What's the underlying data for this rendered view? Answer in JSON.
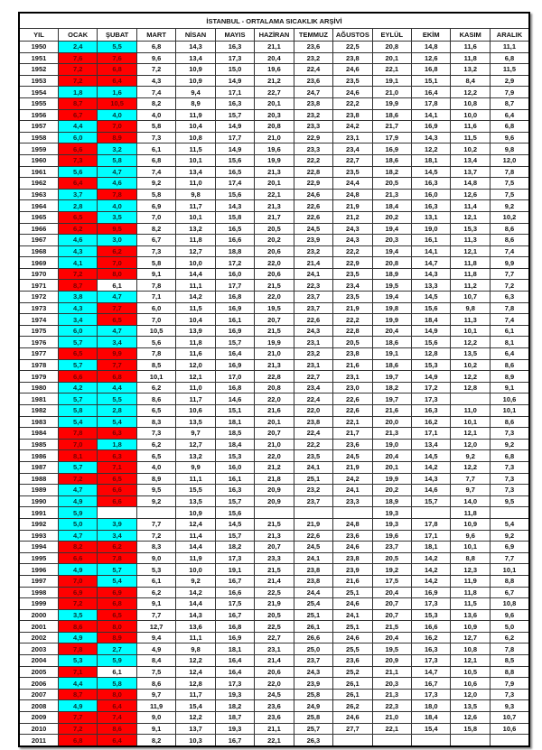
{
  "title": "İSTANBUL - ORTALAMA SICAKLIK ARŞİVİ",
  "colors": {
    "above": "#ff0000",
    "below": "#00ffff"
  },
  "headers": [
    "YIL",
    "OCAK",
    "ŞUBAT",
    "MART",
    "NİSAN",
    "MAYIS",
    "HAZİRAN",
    "TEMMUZ",
    "AĞUSTOS",
    "EYLÜL",
    "EKİM",
    "KASIM",
    "ARALIK"
  ],
  "rows": [
    {
      "cells": [
        "1950",
        "2,4",
        "5,5",
        "6,8",
        "14,3",
        "16,3",
        "21,1",
        "23,6",
        "22,5",
        "20,8",
        "14,8",
        "11,6",
        "11,1"
      ],
      "hl": "cc"
    },
    {
      "cells": [
        "1951",
        "7,6",
        "7,6",
        "9,6",
        "13,4",
        "17,3",
        "20,4",
        "23,2",
        "23,8",
        "20,1",
        "12,6",
        "11,8",
        "6,8"
      ],
      "hl": "rr"
    },
    {
      "cells": [
        "1952",
        "7,2",
        "6,8",
        "7,2",
        "10,9",
        "15,0",
        "19,6",
        "22,4",
        "24,6",
        "22,1",
        "16,8",
        "13,2",
        "11,5"
      ],
      "hl": "rr"
    },
    {
      "cells": [
        "1953",
        "7,2",
        "6,4",
        "4,3",
        "10,9",
        "14,9",
        "21,2",
        "23,6",
        "23,5",
        "19,1",
        "15,1",
        "8,4",
        "2,9"
      ],
      "hl": "rr"
    },
    {
      "cells": [
        "1954",
        "1,8",
        "1,6",
        "7,4",
        "9,4",
        "17,1",
        "22,7",
        "24,7",
        "24,6",
        "21,0",
        "16,4",
        "12,2",
        "7,9"
      ],
      "hl": "cc"
    },
    {
      "cells": [
        "1955",
        "8,7",
        "10,5",
        "8,2",
        "8,9",
        "16,3",
        "20,1",
        "23,8",
        "22,2",
        "19,9",
        "17,8",
        "10,8",
        "8,7"
      ],
      "hl": "rr"
    },
    {
      "cells": [
        "1956",
        "6,7",
        "4,0",
        "4,0",
        "11,9",
        "15,7",
        "20,3",
        "23,2",
        "23,8",
        "18,6",
        "14,1",
        "10,0",
        "6,4"
      ],
      "hl": "rc"
    },
    {
      "cells": [
        "1957",
        "4,4",
        "7,0",
        "5,8",
        "10,4",
        "14,9",
        "20,8",
        "23,3",
        "24,2",
        "21,7",
        "16,9",
        "11,6",
        "6,8"
      ],
      "hl": "cr"
    },
    {
      "cells": [
        "1958",
        "6,0",
        "8,9",
        "7,3",
        "10,8",
        "17,7",
        "21,0",
        "22,9",
        "23,1",
        "17,9",
        "14,3",
        "11,5",
        "9,6"
      ],
      "hl": "cr"
    },
    {
      "cells": [
        "1959",
        "6,6",
        "3,2",
        "6,1",
        "11,5",
        "14,9",
        "19,6",
        "23,3",
        "23,4",
        "16,9",
        "12,2",
        "10,2",
        "9,8"
      ],
      "hl": "rc"
    },
    {
      "cells": [
        "1960",
        "7,3",
        "5,8",
        "6,8",
        "10,1",
        "15,6",
        "19,9",
        "22,2",
        "22,7",
        "18,6",
        "18,1",
        "13,4",
        "12,0"
      ],
      "hl": "rc"
    },
    {
      "cells": [
        "1961",
        "5,6",
        "4,7",
        "7,4",
        "13,4",
        "16,5",
        "21,3",
        "22,8",
        "23,5",
        "18,2",
        "14,5",
        "13,7",
        "7,8"
      ],
      "hl": "cc"
    },
    {
      "cells": [
        "1962",
        "6,4",
        "4,6",
        "9,2",
        "11,0",
        "17,4",
        "20,1",
        "22,9",
        "24,4",
        "20,5",
        "16,3",
        "14,8",
        "7,5"
      ],
      "hl": "rc"
    },
    {
      "cells": [
        "1963",
        "3,7",
        "7,8",
        "5,8",
        "9,8",
        "15,6",
        "22,1",
        "24,6",
        "24,8",
        "21,3",
        "16,0",
        "12,6",
        "7,5"
      ],
      "hl": "cr"
    },
    {
      "cells": [
        "1964",
        "2,8",
        "4,0",
        "6,9",
        "11,7",
        "14,3",
        "21,3",
        "22,6",
        "21,9",
        "18,4",
        "16,3",
        "11,4",
        "9,2"
      ],
      "hl": "cc"
    },
    {
      "cells": [
        "1965",
        "6,5",
        "3,5",
        "7,0",
        "10,1",
        "15,8",
        "21,7",
        "22,6",
        "21,2",
        "20,2",
        "13,1",
        "12,1",
        "10,2"
      ],
      "hl": "rc"
    },
    {
      "cells": [
        "1966",
        "6,2",
        "9,5",
        "8,2",
        "13,2",
        "16,5",
        "20,5",
        "24,5",
        "24,3",
        "19,4",
        "19,0",
        "15,3",
        "8,6"
      ],
      "hl": "rr"
    },
    {
      "cells": [
        "1967",
        "4,6",
        "3,0",
        "6,7",
        "11,8",
        "16,6",
        "20,2",
        "23,9",
        "24,3",
        "20,3",
        "16,1",
        "11,3",
        "8,6"
      ],
      "hl": "cc"
    },
    {
      "cells": [
        "1968",
        "4,3",
        "6,2",
        "7,3",
        "12,7",
        "18,8",
        "20,6",
        "23,2",
        "22,2",
        "19,4",
        "14,1",
        "12,1",
        "7,4"
      ],
      "hl": "cr"
    },
    {
      "cells": [
        "1969",
        "4,1",
        "7,0",
        "5,8",
        "10,0",
        "17,2",
        "22,0",
        "21,4",
        "22,9",
        "20,8",
        "14,7",
        "11,8",
        "9,9"
      ],
      "hl": "cr"
    },
    {
      "cells": [
        "1970",
        "7,2",
        "8,0",
        "9,1",
        "14,4",
        "16,0",
        "20,6",
        "24,1",
        "23,5",
        "18,9",
        "14,3",
        "11,8",
        "7,7"
      ],
      "hl": "rr"
    },
    {
      "cells": [
        "1971",
        "8,7",
        "6,1",
        "7,8",
        "11,1",
        "17,7",
        "21,5",
        "22,3",
        "23,4",
        "19,5",
        "13,3",
        "11,2",
        "7,2"
      ],
      "hl": "rw"
    },
    {
      "cells": [
        "1972",
        "3,8",
        "4,7",
        "7,1",
        "14,2",
        "16,8",
        "22,0",
        "23,7",
        "23,5",
        "19,4",
        "14,5",
        "10,7",
        "6,3"
      ],
      "hl": "cc"
    },
    {
      "cells": [
        "1973",
        "4,3",
        "7,7",
        "6,0",
        "11,5",
        "16,9",
        "19,5",
        "23,7",
        "21,9",
        "19,8",
        "15,6",
        "9,8",
        "7,8"
      ],
      "hl": "cr"
    },
    {
      "cells": [
        "1974",
        "3,4",
        "6,5",
        "7,0",
        "10,4",
        "16,1",
        "20,7",
        "22,6",
        "22,2",
        "19,9",
        "18,4",
        "11,3",
        "7,4"
      ],
      "hl": "cr"
    },
    {
      "cells": [
        "1975",
        "6,0",
        "4,7",
        "10,5",
        "13,9",
        "16,9",
        "21,5",
        "24,3",
        "22,8",
        "20,4",
        "14,9",
        "10,1",
        "6,1"
      ],
      "hl": "cc"
    },
    {
      "cells": [
        "1976",
        "5,7",
        "3,4",
        "5,6",
        "11,8",
        "15,7",
        "19,9",
        "23,1",
        "20,5",
        "18,6",
        "15,6",
        "12,2",
        "8,1"
      ],
      "hl": "cc"
    },
    {
      "cells": [
        "1977",
        "6,5",
        "9,9",
        "7,8",
        "11,6",
        "16,4",
        "21,0",
        "23,2",
        "23,8",
        "19,1",
        "12,8",
        "13,5",
        "6,4"
      ],
      "hl": "rr"
    },
    {
      "cells": [
        "1978",
        "5,7",
        "7,7",
        "8,5",
        "12,0",
        "16,9",
        "21,3",
        "23,1",
        "21,6",
        "18,6",
        "15,3",
        "10,2",
        "8,6"
      ],
      "hl": "cr"
    },
    {
      "cells": [
        "1979",
        "6,6",
        "6,8",
        "10,1",
        "12,1",
        "17,0",
        "22,8",
        "22,7",
        "23,1",
        "19,7",
        "14,9",
        "12,2",
        "8,9"
      ],
      "hl": "rr"
    },
    {
      "cells": [
        "1980",
        "4,2",
        "4,4",
        "6,2",
        "11,0",
        "16,8",
        "20,8",
        "23,4",
        "23,0",
        "18,2",
        "17,2",
        "12,8",
        "9,1"
      ],
      "hl": "cc"
    },
    {
      "cells": [
        "1981",
        "5,7",
        "5,5",
        "8,6",
        "11,7",
        "14,6",
        "22,0",
        "22,4",
        "22,6",
        "19,7",
        "17,3",
        "",
        "10,6"
      ],
      "hl": "cc"
    },
    {
      "cells": [
        "1982",
        "5,8",
        "2,8",
        "6,5",
        "10,6",
        "15,1",
        "21,6",
        "22,0",
        "22,6",
        "21,6",
        "16,3",
        "11,0",
        "10,1"
      ],
      "hl": "cc"
    },
    {
      "cells": [
        "1983",
        "5,4",
        "5,4",
        "8,3",
        "13,5",
        "18,1",
        "20,1",
        "23,8",
        "22,1",
        "20,0",
        "16,2",
        "10,1",
        "8,6"
      ],
      "hl": "cc"
    },
    {
      "cells": [
        "1984",
        "7,8",
        "6,3",
        "7,3",
        "9,7",
        "18,5",
        "20,7",
        "22,4",
        "21,7",
        "21,3",
        "17,1",
        "12,1",
        "7,3"
      ],
      "hl": "rr"
    },
    {
      "cells": [
        "1985",
        "7,0",
        "1,8",
        "6,2",
        "12,7",
        "18,4",
        "21,0",
        "22,2",
        "23,6",
        "19,0",
        "13,4",
        "12,0",
        "9,2"
      ],
      "hl": "rc"
    },
    {
      "cells": [
        "1986",
        "8,1",
        "6,3",
        "6,5",
        "13,2",
        "15,3",
        "22,0",
        "23,5",
        "24,5",
        "20,4",
        "14,5",
        "9,2",
        "6,8"
      ],
      "hl": "rr"
    },
    {
      "cells": [
        "1987",
        "5,7",
        "7,1",
        "4,0",
        "9,9",
        "16,0",
        "21,2",
        "24,1",
        "21,9",
        "20,1",
        "14,2",
        "12,2",
        "7,3"
      ],
      "hl": "cr"
    },
    {
      "cells": [
        "1988",
        "7,2",
        "6,5",
        "8,9",
        "11,1",
        "16,1",
        "21,8",
        "25,1",
        "24,2",
        "19,9",
        "14,3",
        "7,7",
        "7,3"
      ],
      "hl": "rr"
    },
    {
      "cells": [
        "1989",
        "4,7",
        "6,6",
        "9,5",
        "15,5",
        "16,3",
        "20,9",
        "23,2",
        "24,1",
        "20,2",
        "14,6",
        "9,7",
        "7,3"
      ],
      "hl": "cr"
    },
    {
      "cells": [
        "1990",
        "4,9",
        "6,6",
        "9,2",
        "13,5",
        "15,7",
        "20,9",
        "23,7",
        "23,3",
        "18,9",
        "15,7",
        "14,0",
        "9,5"
      ],
      "hl": "cr"
    },
    {
      "cells": [
        "1991",
        "5,9",
        "",
        "",
        "10,9",
        "15,6",
        "",
        "",
        "",
        "19,3",
        "",
        "11,8",
        ""
      ],
      "hl": "cw"
    },
    {
      "cells": [
        "1992",
        "5,0",
        "3,9",
        "7,7",
        "12,4",
        "14,5",
        "21,5",
        "21,9",
        "24,8",
        "19,3",
        "17,8",
        "10,9",
        "5,4"
      ],
      "hl": "cc"
    },
    {
      "cells": [
        "1993",
        "4,7",
        "3,4",
        "7,2",
        "11,4",
        "15,7",
        "21,3",
        "22,6",
        "23,6",
        "19,6",
        "17,1",
        "9,6",
        "9,2"
      ],
      "hl": "cc"
    },
    {
      "cells": [
        "1994",
        "8,2",
        "6,2",
        "8,3",
        "14,4",
        "18,2",
        "20,7",
        "24,5",
        "24,6",
        "23,7",
        "18,1",
        "10,1",
        "6,9"
      ],
      "hl": "rr"
    },
    {
      "cells": [
        "1995",
        "6,6",
        "7,8",
        "9,0",
        "11,9",
        "17,3",
        "23,3",
        "24,1",
        "23,8",
        "20,5",
        "14,2",
        "8,8",
        "7,7"
      ],
      "hl": "rr"
    },
    {
      "cells": [
        "1996",
        "4,9",
        "5,7",
        "5,3",
        "10,0",
        "19,1",
        "21,5",
        "23,8",
        "23,9",
        "19,2",
        "14,2",
        "12,3",
        "10,1"
      ],
      "hl": "cc"
    },
    {
      "cells": [
        "1997",
        "7,0",
        "5,4",
        "6,1",
        "9,2",
        "16,7",
        "21,4",
        "23,8",
        "21,6",
        "17,5",
        "14,2",
        "11,9",
        "8,8"
      ],
      "hl": "rc"
    },
    {
      "cells": [
        "1998",
        "6,9",
        "6,9",
        "6,2",
        "14,2",
        "16,6",
        "22,5",
        "24,4",
        "25,1",
        "20,4",
        "16,9",
        "11,8",
        "6,7"
      ],
      "hl": "rr"
    },
    {
      "cells": [
        "1999",
        "7,2",
        "6,8",
        "9,1",
        "14,4",
        "17,5",
        "21,9",
        "25,4",
        "24,6",
        "20,7",
        "17,3",
        "11,5",
        "10,8"
      ],
      "hl": "rr"
    },
    {
      "cells": [
        "2000",
        "3,5",
        "6,5",
        "7,7",
        "14,3",
        "16,7",
        "20,5",
        "25,1",
        "24,1",
        "20,7",
        "15,3",
        "13,6",
        "9,6"
      ],
      "hl": "cr"
    },
    {
      "cells": [
        "2001",
        "8,6",
        "8,0",
        "12,7",
        "13,6",
        "16,8",
        "22,5",
        "26,1",
        "25,1",
        "21,5",
        "16,6",
        "10,9",
        "5,0"
      ],
      "hl": "rr"
    },
    {
      "cells": [
        "2002",
        "4,9",
        "8,9",
        "9,4",
        "11,1",
        "16,9",
        "22,7",
        "26,6",
        "24,6",
        "20,4",
        "16,2",
        "12,7",
        "6,2"
      ],
      "hl": "cr"
    },
    {
      "cells": [
        "2003",
        "7,8",
        "2,7",
        "4,9",
        "9,8",
        "18,1",
        "23,1",
        "25,0",
        "25,5",
        "19,5",
        "16,3",
        "10,8",
        "7,8"
      ],
      "hl": "rc"
    },
    {
      "cells": [
        "2004",
        "5,3",
        "5,9",
        "8,4",
        "12,2",
        "16,4",
        "21,4",
        "23,7",
        "23,6",
        "20,9",
        "17,3",
        "12,1",
        "8,5"
      ],
      "hl": "cc"
    },
    {
      "cells": [
        "2005",
        "7,1",
        "6,1",
        "7,5",
        "12,4",
        "16,4",
        "20,6",
        "24,3",
        "25,2",
        "21,1",
        "14,7",
        "10,5",
        "8,8"
      ],
      "hl": "rw"
    },
    {
      "cells": [
        "2006",
        "4,4",
        "5,8",
        "8,6",
        "12,8",
        "17,3",
        "22,0",
        "23,9",
        "26,1",
        "20,3",
        "16,7",
        "10,6",
        "7,9"
      ],
      "hl": "cc"
    },
    {
      "cells": [
        "2007",
        "8,7",
        "8,0",
        "9,7",
        "11,7",
        "19,3",
        "24,5",
        "25,8",
        "26,1",
        "21,3",
        "17,3",
        "12,0",
        "7,3"
      ],
      "hl": "rr"
    },
    {
      "cells": [
        "2008",
        "4,9",
        "6,4",
        "11,9",
        "15,4",
        "18,2",
        "23,6",
        "24,9",
        "26,2",
        "22,3",
        "18,0",
        "13,5",
        "9,3"
      ],
      "hl": "cr"
    },
    {
      "cells": [
        "2009",
        "7,7",
        "7,4",
        "9,0",
        "12,2",
        "18,7",
        "23,6",
        "25,8",
        "24,6",
        "21,0",
        "18,4",
        "12,6",
        "10,7"
      ],
      "hl": "rr"
    },
    {
      "cells": [
        "2010",
        "7,2",
        "8,6",
        "9,1",
        "13,7",
        "19,3",
        "21,1",
        "25,7",
        "27,7",
        "22,1",
        "15,4",
        "15,8",
        "10,6"
      ],
      "hl": "rr"
    },
    {
      "cells": [
        "2011",
        "6,8",
        "6,4",
        "8,2",
        "10,3",
        "16,7",
        "22,1",
        "26,3",
        "",
        "",
        "",
        "",
        ""
      ],
      "hl": "rr"
    }
  ]
}
